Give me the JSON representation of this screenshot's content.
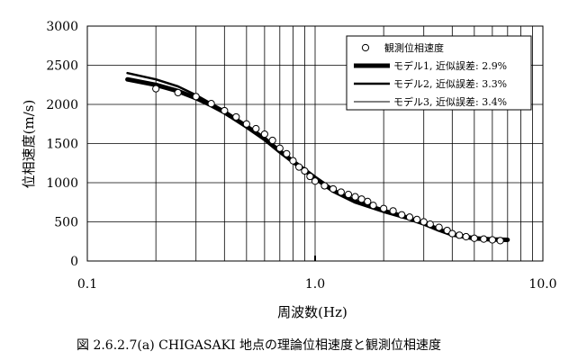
{
  "chart_data": {
    "type": "line",
    "x_scale": "log",
    "xlim": [
      0.1,
      10.0
    ],
    "ylim": [
      0,
      3000
    ],
    "grid": true,
    "legend_position": "top-right",
    "xlabel": "周波数(Hz)",
    "ylabel": "位相速度(m/s)",
    "x_ticks": [
      "0.1",
      "1.0",
      "10.0"
    ],
    "y_ticks": [
      "0",
      "500",
      "1000",
      "1500",
      "2000",
      "2500",
      "3000"
    ],
    "legend": [
      "観測位相速度",
      "モデル1, 近似誤差: 2.9%",
      "モデル2, 近似誤差: 3.3%",
      "モデル3, 近似誤差: 3.4%"
    ],
    "series": [
      {
        "name": "観測位相速度",
        "style": "marker",
        "x": [
          0.2,
          0.25,
          0.3,
          0.35,
          0.4,
          0.45,
          0.5,
          0.55,
          0.6,
          0.65,
          0.7,
          0.75,
          0.8,
          0.85,
          0.9,
          0.95,
          1.0,
          1.1,
          1.2,
          1.3,
          1.4,
          1.5,
          1.6,
          1.7,
          1.8,
          2.0,
          2.2,
          2.4,
          2.6,
          2.8,
          3.0,
          3.2,
          3.5,
          3.8,
          4.0,
          4.3,
          4.6,
          5.0,
          5.5,
          6.0,
          6.5
        ],
        "y": [
          2200,
          2150,
          2100,
          2010,
          1920,
          1840,
          1750,
          1690,
          1620,
          1540,
          1440,
          1370,
          1280,
          1200,
          1150,
          1080,
          1020,
          960,
          920,
          880,
          850,
          820,
          790,
          760,
          710,
          670,
          640,
          590,
          560,
          530,
          500,
          470,
          430,
          390,
          350,
          330,
          310,
          290,
          280,
          270,
          260
        ]
      },
      {
        "name": "モデル1, 近似誤差: 2.9%",
        "style": "thick",
        "x": [
          0.15,
          0.2,
          0.25,
          0.3,
          0.35,
          0.4,
          0.5,
          0.6,
          0.7,
          0.8,
          0.9,
          1.0,
          1.2,
          1.5,
          2.0,
          2.5,
          3.0,
          3.5,
          4.0,
          5.0,
          6.0,
          7.0
        ],
        "y": [
          2320,
          2250,
          2170,
          2080,
          1990,
          1900,
          1720,
          1560,
          1400,
          1270,
          1160,
          1060,
          900,
          760,
          640,
          560,
          480,
          400,
          340,
          290,
          275,
          270
        ]
      },
      {
        "name": "モデル2, 近似誤差: 3.3%",
        "style": "medium",
        "x": [
          0.15,
          0.2,
          0.25,
          0.3,
          0.35,
          0.4,
          0.5,
          0.6,
          0.7,
          0.8,
          0.9,
          1.0,
          1.2,
          1.5,
          2.0,
          2.5,
          3.0,
          3.5,
          4.0,
          5.0,
          6.0,
          7.0
        ],
        "y": [
          2400,
          2320,
          2230,
          2120,
          2010,
          1920,
          1730,
          1560,
          1400,
          1260,
          1150,
          1050,
          890,
          750,
          640,
          560,
          480,
          400,
          340,
          290,
          275,
          270
        ]
      },
      {
        "name": "モデル3, 近似誤差: 3.4%",
        "style": "thin",
        "x": [
          0.15,
          0.2,
          0.25,
          0.3,
          0.35,
          0.4,
          0.5,
          0.6,
          0.7,
          0.8,
          0.9,
          1.0,
          1.2,
          1.5,
          2.0,
          2.5,
          3.0,
          3.5,
          4.0,
          5.0,
          6.0,
          7.0
        ],
        "y": [
          2300,
          2230,
          2160,
          2080,
          1990,
          1910,
          1730,
          1570,
          1410,
          1270,
          1160,
          1060,
          900,
          760,
          640,
          560,
          480,
          400,
          340,
          290,
          275,
          270
        ]
      }
    ]
  },
  "caption": "図 2.6.2.7(a)  CHIGASAKI 地点の理論位相速度と観測位相速度"
}
